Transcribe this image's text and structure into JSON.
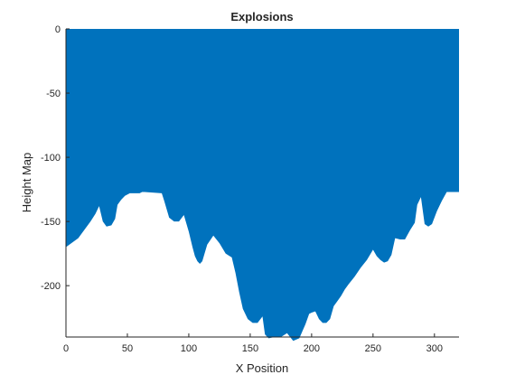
{
  "chart_data": {
    "type": "area",
    "title": "Explosions",
    "xlabel": "X Position",
    "ylabel": "Height Map",
    "xlim": [
      0,
      320
    ],
    "ylim": [
      -240,
      0
    ],
    "xticks": [
      0,
      50,
      100,
      150,
      200,
      250,
      300
    ],
    "yticks": [
      0,
      -50,
      -100,
      -150,
      -200
    ],
    "grid": false,
    "legend": "none",
    "fill_color": "#0072BD",
    "series": [
      {
        "x": [
          0,
          10,
          20,
          24,
          27,
          30,
          33,
          37,
          40,
          42,
          45,
          48,
          52,
          56,
          60,
          62,
          64,
          78,
          80,
          84,
          88,
          92,
          96,
          100,
          103,
          105,
          107,
          109,
          111,
          115,
          120,
          125,
          130,
          135,
          138,
          141,
          144,
          148,
          152,
          156,
          160,
          162,
          165,
          170,
          175,
          180,
          185,
          190,
          195,
          198,
          200,
          203,
          206,
          209,
          212,
          215,
          218,
          221,
          224,
          227,
          230,
          235,
          240,
          245,
          250,
          253,
          256,
          259,
          262,
          265,
          268,
          272,
          276,
          280,
          284,
          286,
          289,
          292,
          295,
          298,
          302,
          306,
          310,
          314,
          318,
          320
        ],
        "y": [
          -170,
          -163,
          -150,
          -144,
          -138,
          -150,
          -154,
          -153,
          -148,
          -137,
          -133,
          -130,
          -128,
          -128,
          -128,
          -127,
          -127,
          -128,
          -134,
          -147,
          -150,
          -150,
          -145,
          -158,
          -170,
          -177,
          -181,
          -183,
          -181,
          -168,
          -161,
          -167,
          -175,
          -178,
          -190,
          -205,
          -218,
          -226,
          -229,
          -229,
          -224,
          -238,
          -241,
          -240,
          -240,
          -237,
          -243,
          -241,
          -230,
          -222,
          -221,
          -220,
          -226,
          -229,
          -229,
          -226,
          -216,
          -212,
          -208,
          -203,
          -199,
          -193,
          -186,
          -180,
          -172,
          -177,
          -180,
          -182,
          -181,
          -176,
          -163,
          -164,
          -164,
          -157,
          -151,
          -137,
          -131,
          -152,
          -154,
          -152,
          -142,
          -134,
          -127,
          -127,
          -127,
          -127
        ]
      }
    ]
  }
}
